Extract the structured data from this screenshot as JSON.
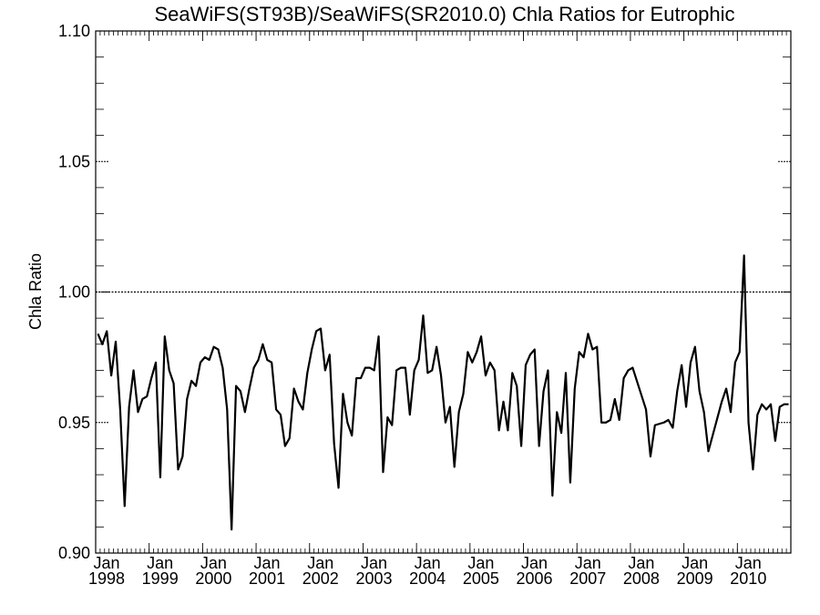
{
  "chart_data": {
    "type": "line",
    "title": "SeaWiFS(ST93B)/SeaWiFS(SR2010.0)  Chla Ratios for Eutrophic",
    "xlabel": "",
    "ylabel": "Chla Ratio",
    "ylim": [
      0.9,
      1.1
    ],
    "xlim": [
      "1998-01",
      "2010-12"
    ],
    "grid": false,
    "reference_line": 1.0,
    "y_ticks": [
      "0.90",
      "0.95",
      "1.00",
      "1.05",
      "1.10"
    ],
    "x_ticks": [
      {
        "month": "Jan",
        "year": "1998"
      },
      {
        "month": "Jan",
        "year": "1999"
      },
      {
        "month": "Jan",
        "year": "2000"
      },
      {
        "month": "Jan",
        "year": "2001"
      },
      {
        "month": "Jan",
        "year": "2002"
      },
      {
        "month": "Jan",
        "year": "2003"
      },
      {
        "month": "Jan",
        "year": "2004"
      },
      {
        "month": "Jan",
        "year": "2005"
      },
      {
        "month": "Jan",
        "year": "2006"
      },
      {
        "month": "Jan",
        "year": "2007"
      },
      {
        "month": "Jan",
        "year": "2008"
      },
      {
        "month": "Jan",
        "year": "2009"
      },
      {
        "month": "Jan",
        "year": "2010"
      }
    ],
    "series": [
      {
        "x": [
          "1998-01",
          "1998-02",
          "1998-03",
          "1998-04",
          "1998-05",
          "1998-06",
          "1998-07",
          "1998-08",
          "1998-09",
          "1998-10",
          "1998-11",
          "1998-12",
          "1999-01",
          "1999-02",
          "1999-03",
          "1999-04",
          "1999-05",
          "1999-06",
          "1999-07",
          "1999-08",
          "1999-09",
          "1999-10",
          "1999-11",
          "1999-12",
          "2000-01",
          "2000-02",
          "2000-03",
          "2000-04",
          "2000-05",
          "2000-06",
          "2000-07",
          "2000-08",
          "2000-09",
          "2000-10",
          "2000-11",
          "2000-12",
          "2001-01",
          "2001-02",
          "2001-03",
          "2001-04",
          "2001-05",
          "2001-06",
          "2001-07",
          "2001-08",
          "2001-09",
          "2001-10",
          "2001-11",
          "2001-12",
          "2002-01",
          "2002-02",
          "2002-03",
          "2002-04",
          "2002-05",
          "2002-06",
          "2002-07",
          "2002-08",
          "2002-09",
          "2002-10",
          "2002-11",
          "2002-12",
          "2003-01",
          "2003-02",
          "2003-03",
          "2003-04",
          "2003-05",
          "2003-06",
          "2003-07",
          "2003-08",
          "2003-09",
          "2003-10",
          "2003-11",
          "2003-12",
          "2004-01",
          "2004-02",
          "2004-03",
          "2004-04",
          "2004-05",
          "2004-06",
          "2004-07",
          "2004-08",
          "2004-09",
          "2004-10",
          "2004-11",
          "2004-12",
          "2005-01",
          "2005-02",
          "2005-03",
          "2005-04",
          "2005-05",
          "2005-06",
          "2005-07",
          "2005-08",
          "2005-09",
          "2005-10",
          "2005-11",
          "2005-12",
          "2006-01",
          "2006-02",
          "2006-03",
          "2006-04",
          "2006-05",
          "2006-06",
          "2006-07",
          "2006-08",
          "2006-09",
          "2006-10",
          "2006-11",
          "2006-12",
          "2007-01",
          "2007-02",
          "2007-03",
          "2007-04",
          "2007-05",
          "2007-06",
          "2007-07",
          "2007-08",
          "2007-09",
          "2007-10",
          "2007-11",
          "2007-12",
          "2008-01",
          "2008-04",
          "2008-05",
          "2008-06",
          "2008-08",
          "2008-09",
          "2008-10",
          "2008-11",
          "2008-12",
          "2009-01",
          "2009-02",
          "2009-03",
          "2009-04",
          "2009-05",
          "2009-06",
          "2009-09",
          "2009-10",
          "2009-11",
          "2009-12",
          "2010-01",
          "2010-02",
          "2010-03",
          "2010-04",
          "2010-05",
          "2010-06",
          "2010-07",
          "2010-08",
          "2010-09",
          "2010-10",
          "2010-11",
          "2010-12"
        ],
        "y": [
          0.984,
          0.98,
          0.985,
          0.968,
          0.981,
          0.955,
          0.918,
          0.956,
          0.97,
          0.954,
          0.959,
          0.96,
          0.967,
          0.973,
          0.929,
          0.983,
          0.97,
          0.965,
          0.932,
          0.937,
          0.959,
          0.966,
          0.964,
          0.973,
          0.975,
          0.974,
          0.979,
          0.978,
          0.971,
          0.955,
          0.909,
          0.964,
          0.962,
          0.954,
          0.963,
          0.971,
          0.974,
          0.98,
          0.974,
          0.973,
          0.955,
          0.953,
          0.941,
          0.944,
          0.963,
          0.958,
          0.955,
          0.969,
          0.978,
          0.985,
          0.986,
          0.97,
          0.976,
          0.942,
          0.925,
          0.961,
          0.95,
          0.945,
          0.967,
          0.967,
          0.971,
          0.971,
          0.97,
          0.983,
          0.931,
          0.952,
          0.949,
          0.97,
          0.971,
          0.971,
          0.953,
          0.97,
          0.974,
          0.991,
          0.969,
          0.97,
          0.979,
          0.968,
          0.95,
          0.956,
          0.933,
          0.954,
          0.961,
          0.977,
          0.973,
          0.977,
          0.983,
          0.968,
          0.973,
          0.97,
          0.947,
          0.958,
          0.947,
          0.969,
          0.964,
          0.941,
          0.972,
          0.976,
          0.978,
          0.941,
          0.962,
          0.97,
          0.922,
          0.954,
          0.946,
          0.969,
          0.927,
          0.963,
          0.977,
          0.975,
          0.984,
          0.978,
          0.979,
          0.95,
          0.95,
          0.951,
          0.959,
          0.951,
          0.967,
          0.97,
          0.971,
          0.955,
          0.937,
          0.949,
          0.95,
          0.951,
          0.948,
          0.962,
          0.972,
          0.956,
          0.973,
          0.979,
          0.962,
          0.954,
          0.939,
          0.958,
          0.963,
          0.954,
          0.973,
          0.977,
          1.014,
          0.95,
          0.932,
          0.953,
          0.957,
          0.955,
          0.957,
          0.943,
          0.956,
          0.957,
          0.957
        ]
      }
    ]
  }
}
